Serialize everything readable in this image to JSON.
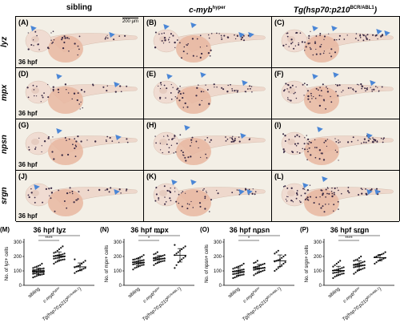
{
  "headers": {
    "col1": "sibling",
    "col2_main": "c-myb",
    "col2_sup": "hyper",
    "col3_main": "Tg(hsp70:p210",
    "col3_sup": "BCR/ABL1",
    "col3_end": ")"
  },
  "scale_label": "200 µm",
  "stage_label": "36 hpf",
  "rows": [
    {
      "label": "lyz",
      "panels": [
        "(A)",
        "(B)",
        "(C)"
      ]
    },
    {
      "label": "mpx",
      "panels": [
        "(D)",
        "(E)",
        "(F)"
      ]
    },
    {
      "label": "npsn",
      "panels": [
        "(G)",
        "(H)",
        "(I)"
      ]
    },
    {
      "label": "srgn",
      "panels": [
        "(J)",
        "(K)",
        "(L)"
      ]
    }
  ],
  "colors": {
    "arrow": "#4a86d6",
    "stain_bg": "#f3efe6",
    "yolk": "#e8b7a0",
    "dots": "#3a2a44"
  },
  "chart_data": [
    {
      "type": "scatter",
      "letter": "(M)",
      "title": "36 hpf lyz",
      "ylabel": "No. of lyz+ cells",
      "ylim": [
        0,
        300
      ],
      "yticks": [
        0,
        100,
        200,
        300
      ],
      "categories": [
        "sibling",
        "c-myb hyper",
        "Tg(hsp70:p210 BCR/ABL1)"
      ],
      "significance": [
        "****",
        "***"
      ],
      "series": [
        {
          "values": [
            55,
            60,
            65,
            70,
            72,
            75,
            78,
            80,
            82,
            85,
            85,
            88,
            90,
            90,
            92,
            95,
            95,
            98,
            100,
            100,
            102,
            105,
            105,
            108,
            110,
            112,
            115,
            118,
            120,
            125,
            130,
            135,
            140,
            150
          ]
        },
        {
          "values": [
            150,
            160,
            165,
            170,
            175,
            178,
            180,
            185,
            188,
            190,
            192,
            195,
            198,
            200,
            202,
            205,
            208,
            210,
            212,
            215,
            220,
            225,
            230,
            240,
            250,
            260,
            270
          ]
        },
        {
          "values": [
            85,
            95,
            100,
            105,
            110,
            115,
            120,
            125,
            130,
            135,
            140,
            150,
            160,
            170,
            180
          ]
        }
      ]
    },
    {
      "type": "scatter",
      "letter": "(N)",
      "title": "36 hpf mpx",
      "ylabel": "No. of mpx+ cells",
      "ylim": [
        0,
        300
      ],
      "yticks": [
        0,
        100,
        200,
        300
      ],
      "categories": [
        "sibling",
        "c-myb hyper",
        "Tg(hsp70:p210 BCR/ABL1)"
      ],
      "significance": [
        "*",
        "****"
      ],
      "series": [
        {
          "values": [
            110,
            120,
            125,
            130,
            135,
            140,
            142,
            145,
            148,
            150,
            150,
            152,
            155,
            158,
            160,
            162,
            165,
            168,
            170,
            172,
            175,
            178,
            180,
            185,
            190,
            195,
            200,
            210
          ]
        },
        {
          "values": [
            140,
            150,
            155,
            160,
            165,
            168,
            170,
            172,
            175,
            178,
            180,
            182,
            185,
            188,
            190,
            192,
            195,
            198,
            200,
            205,
            210,
            215,
            220,
            230
          ]
        },
        {
          "values": [
            120,
            140,
            160,
            170,
            180,
            190,
            200,
            210,
            220,
            230,
            240,
            250,
            260,
            270,
            280
          ]
        }
      ]
    },
    {
      "type": "scatter",
      "letter": "(O)",
      "title": "36 hpf npsn",
      "ylabel": "No. of npsn+ cells",
      "ylim": [
        0,
        300
      ],
      "yticks": [
        0,
        100,
        200,
        300
      ],
      "categories": [
        "sibling",
        "c-myb hyper",
        "Tg(hsp70:p210 BCR/ABL1)"
      ],
      "significance": [
        "*",
        "****"
      ],
      "series": [
        {
          "values": [
            50,
            55,
            60,
            65,
            70,
            72,
            75,
            78,
            80,
            82,
            85,
            88,
            90,
            92,
            95,
            98,
            100,
            102,
            105,
            108,
            110,
            115,
            120,
            125,
            130,
            135,
            140,
            150
          ]
        },
        {
          "values": [
            70,
            80,
            85,
            90,
            95,
            100,
            105,
            108,
            110,
            112,
            115,
            118,
            120,
            122,
            125,
            128,
            130,
            135,
            140,
            145,
            150,
            155,
            160,
            170
          ]
        },
        {
          "values": [
            100,
            110,
            120,
            130,
            140,
            150,
            160,
            165,
            170,
            175,
            180,
            190,
            200,
            210,
            220,
            230,
            240
          ]
        }
      ]
    },
    {
      "type": "scatter",
      "letter": "(P)",
      "title": "36 hpf srgn",
      "ylabel": "No. of srgn+ cells",
      "ylim": [
        0,
        300
      ],
      "yticks": [
        0,
        100,
        200,
        300
      ],
      "categories": [
        "sibling",
        "c-myb hyper",
        "Tg(hsp70:p210 BCR/ABL1)"
      ],
      "significance": [
        "****",
        "****"
      ],
      "series": [
        {
          "values": [
            50,
            60,
            65,
            70,
            75,
            80,
            82,
            85,
            88,
            90,
            92,
            95,
            98,
            100,
            102,
            105,
            108,
            110,
            115,
            120,
            125,
            130,
            140,
            150,
            160,
            170
          ]
        },
        {
          "values": [
            80,
            90,
            100,
            105,
            110,
            115,
            120,
            125,
            128,
            130,
            132,
            135,
            138,
            140,
            142,
            145,
            148,
            150,
            155,
            160,
            165,
            170,
            175,
            180,
            190,
            200
          ]
        },
        {
          "values": [
            150,
            160,
            170,
            175,
            180,
            185,
            190,
            195,
            200,
            205,
            210,
            215,
            220,
            230
          ]
        }
      ]
    }
  ]
}
